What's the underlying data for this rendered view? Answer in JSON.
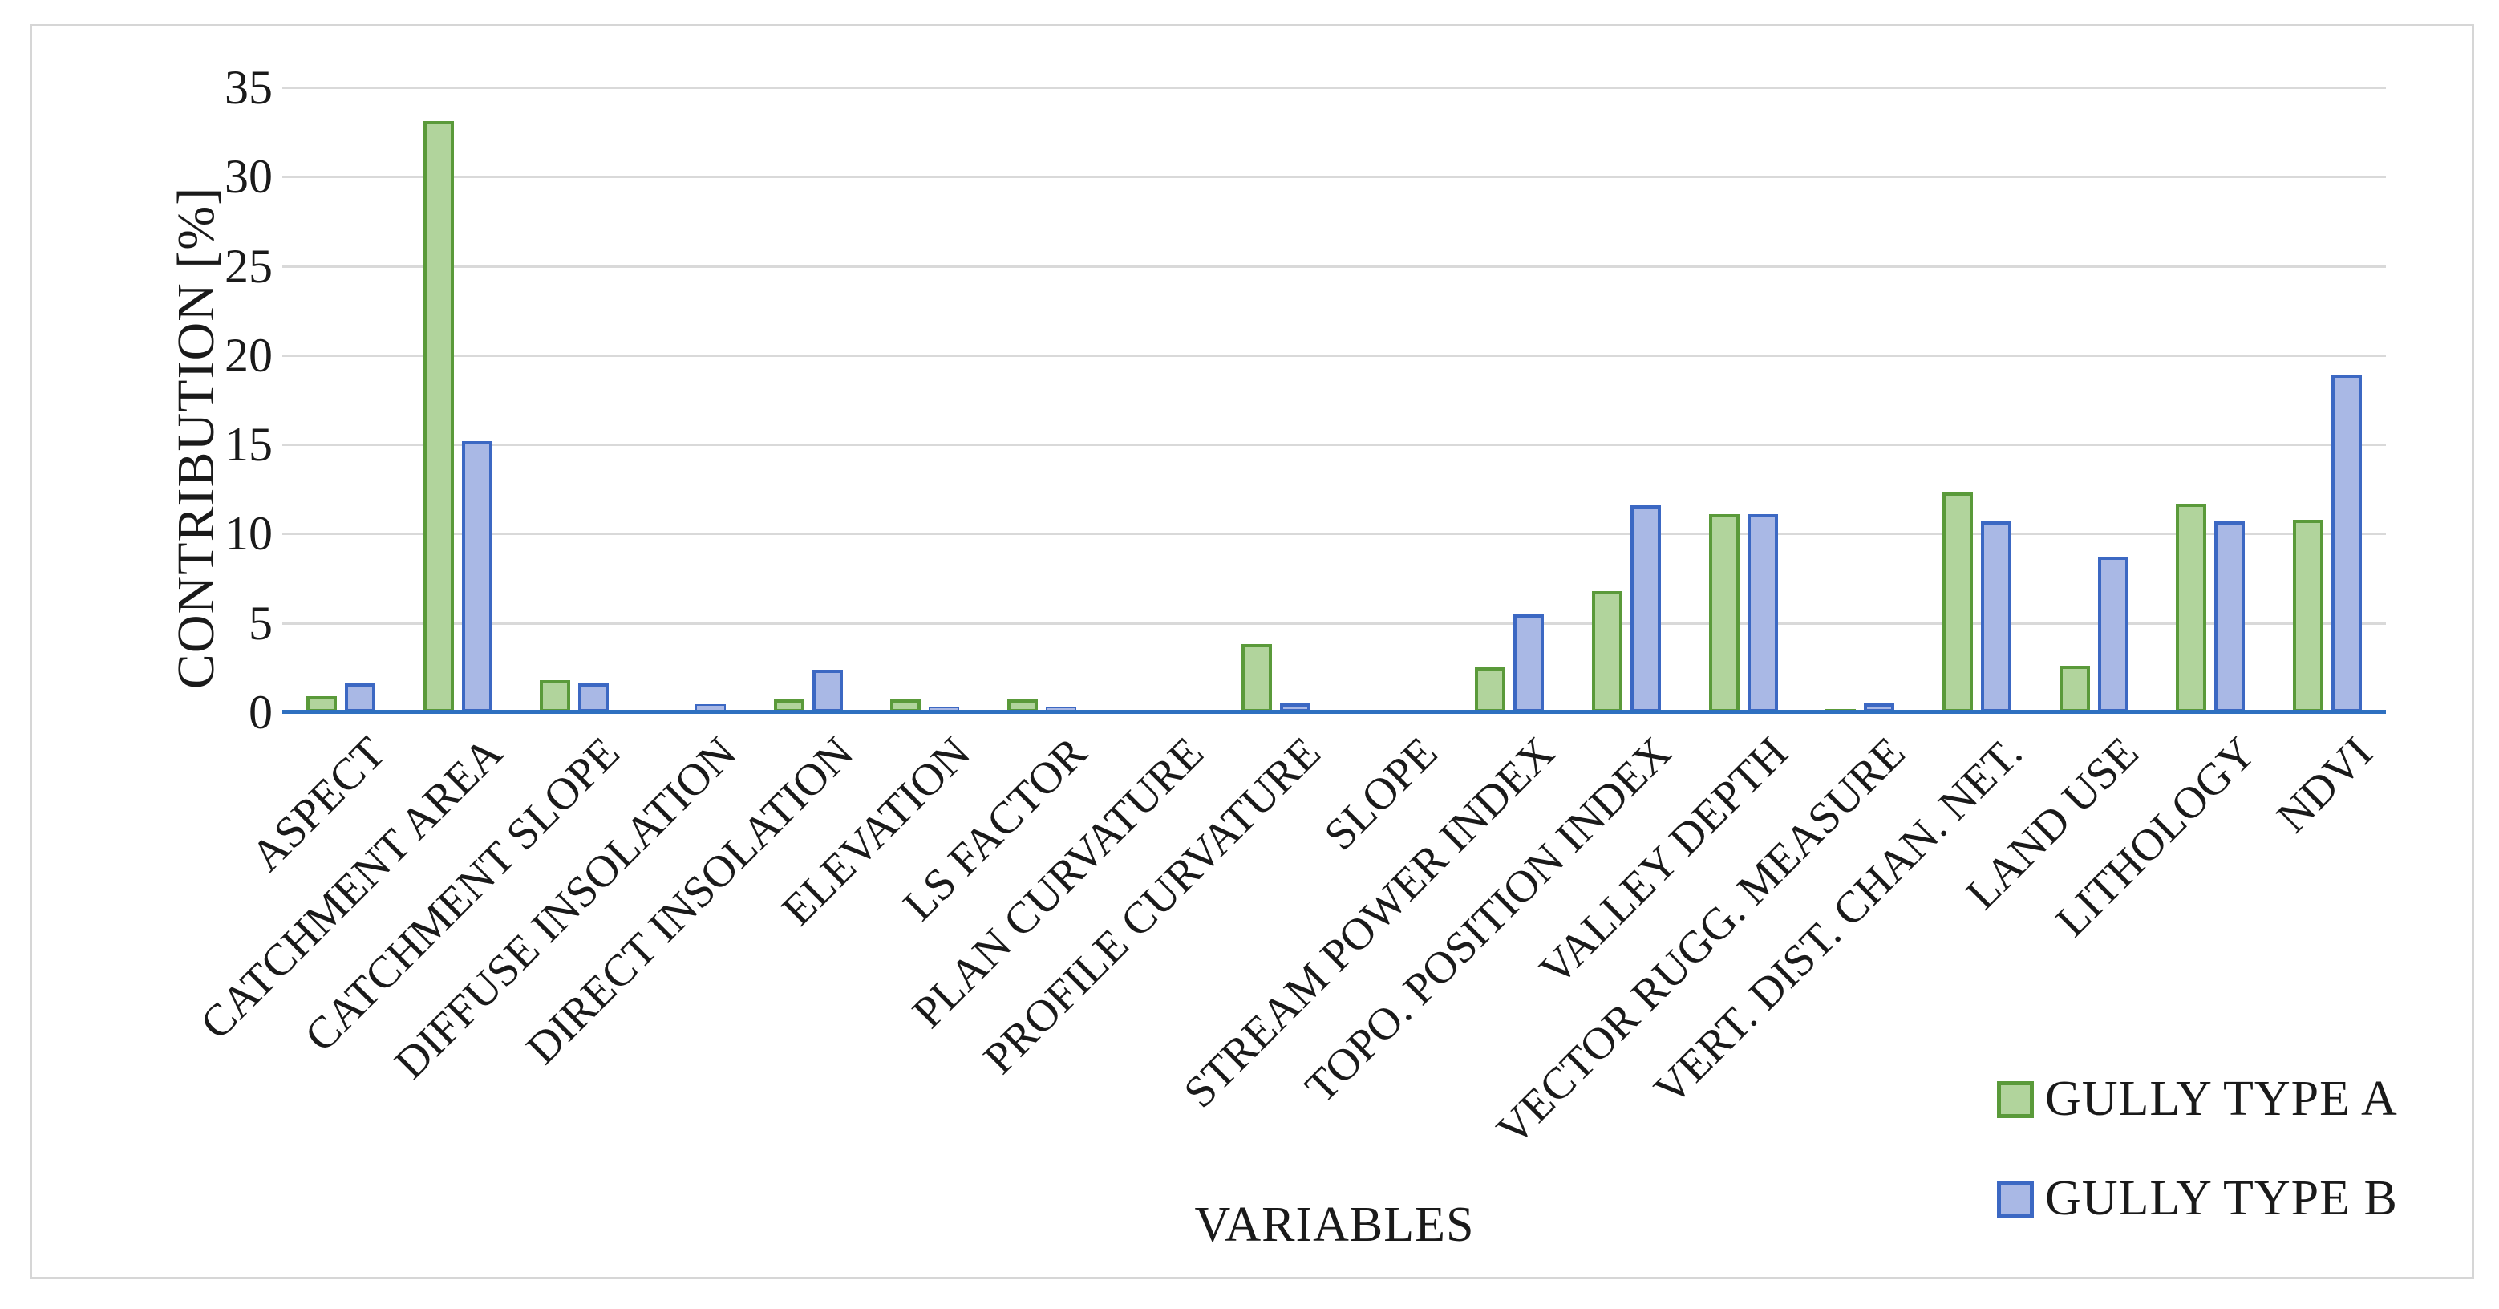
{
  "chart_data": {
    "type": "bar",
    "title": "",
    "xlabel": "VARIABLES",
    "ylabel": "CONTRIBUTION [%]",
    "ylim": [
      0,
      35
    ],
    "yticks": [
      0,
      5,
      10,
      15,
      20,
      25,
      30,
      35
    ],
    "grid": true,
    "legend_position": "bottom-right",
    "categories": [
      "ASPECT",
      "CATCHMENT AREA",
      "CATCHMENT SLOPE",
      "DIFFUSE INSOLATION",
      "DIRECT INSOLATION",
      "ELEVATION",
      "LS FACTOR",
      "PLAN CURVATURE",
      "PROFILE CURVATURE",
      "SLOPE",
      "STREAM POWER INDEX",
      "TOPO. POSITION INDEX",
      "VALLEY DEPTH",
      "VECTOR RUGG. MEASURE",
      "VERT. DIST. CHAN. NET.",
      "LAND USE",
      "LITHOLOGY",
      "NDVI"
    ],
    "series": [
      {
        "name": "GULLY TYPE A",
        "fill_color": "#b1d49c",
        "border_color": "#5a9a3a",
        "values": [
          0.9,
          33.1,
          1.8,
          0.15,
          0.7,
          0.7,
          0.7,
          0.15,
          3.8,
          0.15,
          2.5,
          6.8,
          11.1,
          0.2,
          12.3,
          2.6,
          11.7,
          10.8
        ]
      },
      {
        "name": "GULLY TYPE B",
        "fill_color": "#a9b8e5",
        "border_color": "#3c68c3",
        "values": [
          1.6,
          15.2,
          1.6,
          0.45,
          2.4,
          0.3,
          0.3,
          0.05,
          0.5,
          0.15,
          5.5,
          11.6,
          11.1,
          0.5,
          10.7,
          8.7,
          10.7,
          18.9
        ]
      }
    ],
    "axis_line_color": "#2e70c0",
    "gridline_color": "#d9d9d9"
  }
}
